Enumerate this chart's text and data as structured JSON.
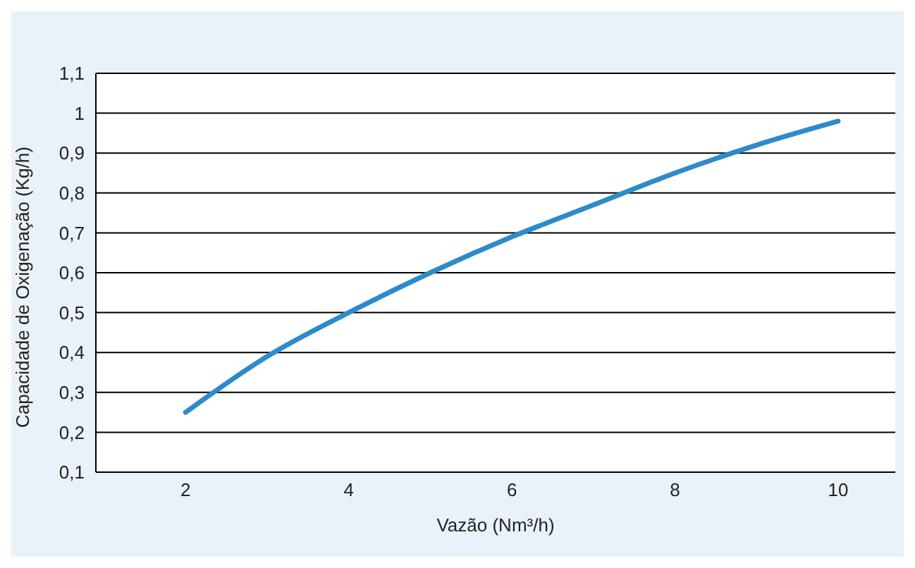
{
  "chart_data": {
    "type": "line",
    "xlabel": "Vazão (Nm³/h)",
    "ylabel": "Capacidade de Oxigenação (Kg/h)",
    "x": [
      2,
      3,
      4,
      5,
      6,
      7,
      8,
      9,
      10
    ],
    "series": [
      {
        "color": "#2e8bc9",
        "values": [
          0.25,
          0.39,
          0.5,
          0.6,
          0.69,
          0.77,
          0.85,
          0.92,
          0.98
        ]
      }
    ],
    "xlim": [
      0.9,
      10.7
    ],
    "xticks": [
      2,
      4,
      6,
      8,
      10
    ],
    "ylim": [
      0.1,
      1.1
    ],
    "yticks": [
      {
        "value": 0.1,
        "label": "0,1"
      },
      {
        "value": 0.2,
        "label": "0,2"
      },
      {
        "value": 0.3,
        "label": "0,3"
      },
      {
        "value": 0.4,
        "label": "0,4"
      },
      {
        "value": 0.5,
        "label": "0,5"
      },
      {
        "value": 0.6,
        "label": "0,6"
      },
      {
        "value": 0.7,
        "label": "0,7"
      },
      {
        "value": 0.8,
        "label": "0,8"
      },
      {
        "value": 0.9,
        "label": "0,9"
      },
      {
        "value": 1,
        "label": "1"
      },
      {
        "value": 1.1,
        "label": "1,1"
      }
    ],
    "grid": "y",
    "marker": "none",
    "line_style": "solid"
  }
}
